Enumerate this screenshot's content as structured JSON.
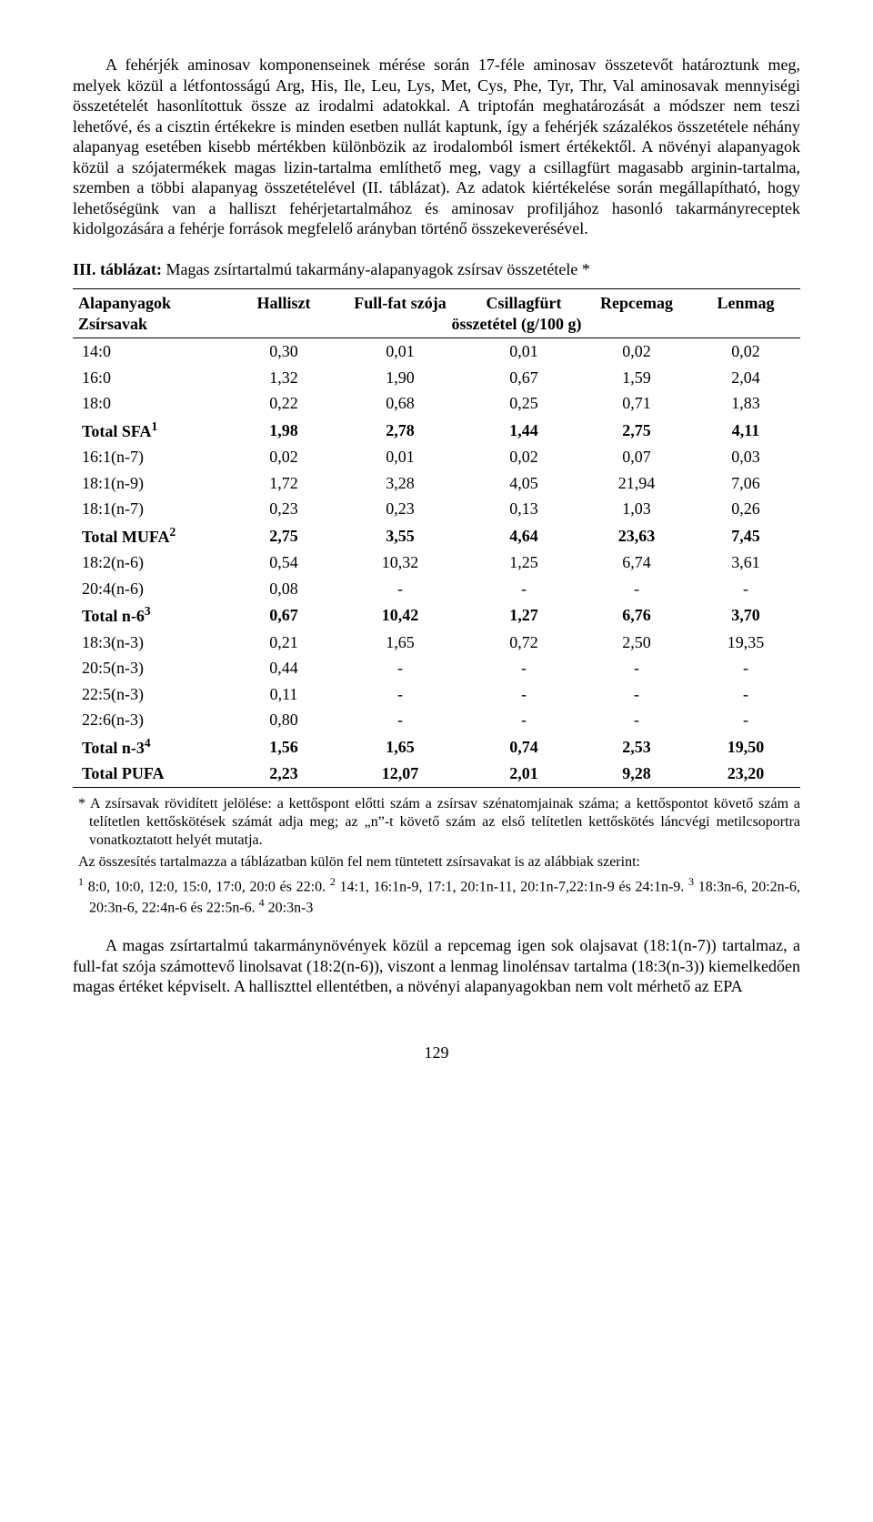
{
  "paragraph1": "A fehérjék aminosav komponenseinek mérése során 17-féle aminosav összetevőt határoztunk meg, melyek közül a létfontosságú Arg, His, Ile, Leu, Lys, Met, Cys, Phe, Tyr, Thr, Val aminosavak mennyiségi összetételét hasonlítottuk össze az irodalmi adatokkal. A triptofán meghatározását a módszer nem teszi lehetővé, és a cisztin értékekre is minden esetben nullát kaptunk, így a fehérjék százalékos összetétele néhány alapanyag esetében kisebb mértékben különbözik az irodalomból ismert értékektől. A növényi alapanyagok közül a szójatermékek magas lizin-tartalma említhető meg, vagy a csillagfürt magasabb arginin-tartalma, szemben a többi alapanyag összetételével (II. táblázat). Az adatok kiértékelése során megállapítható, hogy lehetőségünk van a halliszt fehérjetartalmához és aminosav profiljához hasonló takarmányreceptek kidolgozására a fehérje források megfelelő arányban történő összekeverésével.",
  "table_title_label": "III. táblázat:",
  "table_title_rest": " Magas zsírtartalmú takarmány-alapanyagok zsírsav összetétele *",
  "header_top": [
    "Alapanyagok",
    "Halliszt",
    "Full-fat szója",
    "Csillagfürt",
    "Repcemag",
    "Lenmag"
  ],
  "header_bot_left": "Zsírsavak",
  "header_bot_mid": "összetétel (g/100 g)",
  "rows": [
    {
      "bold": false,
      "label": "14:0",
      "vals": [
        "0,30",
        "0,01",
        "0,01",
        "0,02",
        "0,02"
      ]
    },
    {
      "bold": false,
      "label": "16:0",
      "vals": [
        "1,32",
        "1,90",
        "0,67",
        "1,59",
        "2,04"
      ]
    },
    {
      "bold": false,
      "label": "18:0",
      "vals": [
        "0,22",
        "0,68",
        "0,25",
        "0,71",
        "1,83"
      ]
    },
    {
      "bold": true,
      "label": "Total SFA",
      "sup": "1",
      "vals": [
        "1,98",
        "2,78",
        "1,44",
        "2,75",
        "4,11"
      ]
    },
    {
      "bold": false,
      "label": "16:1(n-7)",
      "vals": [
        "0,02",
        "0,01",
        "0,02",
        "0,07",
        "0,03"
      ]
    },
    {
      "bold": false,
      "label": "18:1(n-9)",
      "vals": [
        "1,72",
        "3,28",
        "4,05",
        "21,94",
        "7,06"
      ]
    },
    {
      "bold": false,
      "label": "18:1(n-7)",
      "vals": [
        "0,23",
        "0,23",
        "0,13",
        "1,03",
        "0,26"
      ]
    },
    {
      "bold": true,
      "label": "Total MUFA",
      "sup": "2",
      "vals": [
        "2,75",
        "3,55",
        "4,64",
        "23,63",
        "7,45"
      ]
    },
    {
      "bold": false,
      "label": "18:2(n-6)",
      "vals": [
        "0,54",
        "10,32",
        "1,25",
        "6,74",
        "3,61"
      ]
    },
    {
      "bold": false,
      "label": "20:4(n-6)",
      "vals": [
        "0,08",
        "-",
        "-",
        "-",
        "-"
      ]
    },
    {
      "bold": true,
      "label": "Total n-6",
      "sup": "3",
      "vals": [
        "0,67",
        "10,42",
        "1,27",
        "6,76",
        "3,70"
      ]
    },
    {
      "bold": false,
      "label": "18:3(n-3)",
      "vals": [
        "0,21",
        "1,65",
        "0,72",
        "2,50",
        "19,35"
      ]
    },
    {
      "bold": false,
      "label": "20:5(n-3)",
      "vals": [
        "0,44",
        "-",
        "-",
        "-",
        "-"
      ]
    },
    {
      "bold": false,
      "label": "22:5(n-3)",
      "vals": [
        "0,11",
        "-",
        "-",
        "-",
        "-"
      ]
    },
    {
      "bold": false,
      "label": "22:6(n-3)",
      "vals": [
        "0,80",
        "-",
        "-",
        "-",
        "-"
      ]
    },
    {
      "bold": true,
      "label": "Total n-3",
      "sup": "4",
      "vals": [
        "1,56",
        "1,65",
        "0,74",
        "2,53",
        "19,50"
      ]
    },
    {
      "bold": true,
      "label": "Total PUFA",
      "vals": [
        "2,23",
        "12,07",
        "2,01",
        "9,28",
        "23,20"
      ],
      "last": true
    }
  ],
  "footnote1": "* A zsírsavak rövidített jelölése: a kettőspont előtti szám a zsírsav szénatomjainak száma; a kettőspontot követő szám a telítetlen kettőskötések számát adja meg; az „n”-t követő szám az első telítetlen kettőskötés láncvégi metilcsoportra vonatkoztatott helyét mutatja.",
  "footnote2_intro": "Az összesítés tartalmazza a táblázatban külön fel nem tüntetett zsírsavakat is az alábbiak szerint:",
  "footnote2_line_html": "<sup>1</sup> 8:0, 10:0, 12:0, 15:0, 17:0, 20:0 és 22:0. <sup>2</sup> 14:1, 16:1n-9, 17:1, 20:1n-11, 20:1n-7,22:1n-9 és 24:1n-9. <sup>3</sup> 18:3n-6, 20:2n-6, 20:3n-6, 22:4n-6 és 22:5n-6. <sup>4</sup> 20:3n-3",
  "paragraph2": "A magas zsírtartalmú takarmánynövények közül a repcemag igen sok olajsavat (18:1(n-7)) tartalmaz, a full-fat szója számottevő linolsavat (18:2(n-6)), viszont a lenmag linolénsav tartalma (18:3(n-3)) kiemelkedően magas értéket képviselt. A halliszttel ellentétben, a növényi alapanyagokban nem volt mérhető az EPA",
  "page_number": "129"
}
